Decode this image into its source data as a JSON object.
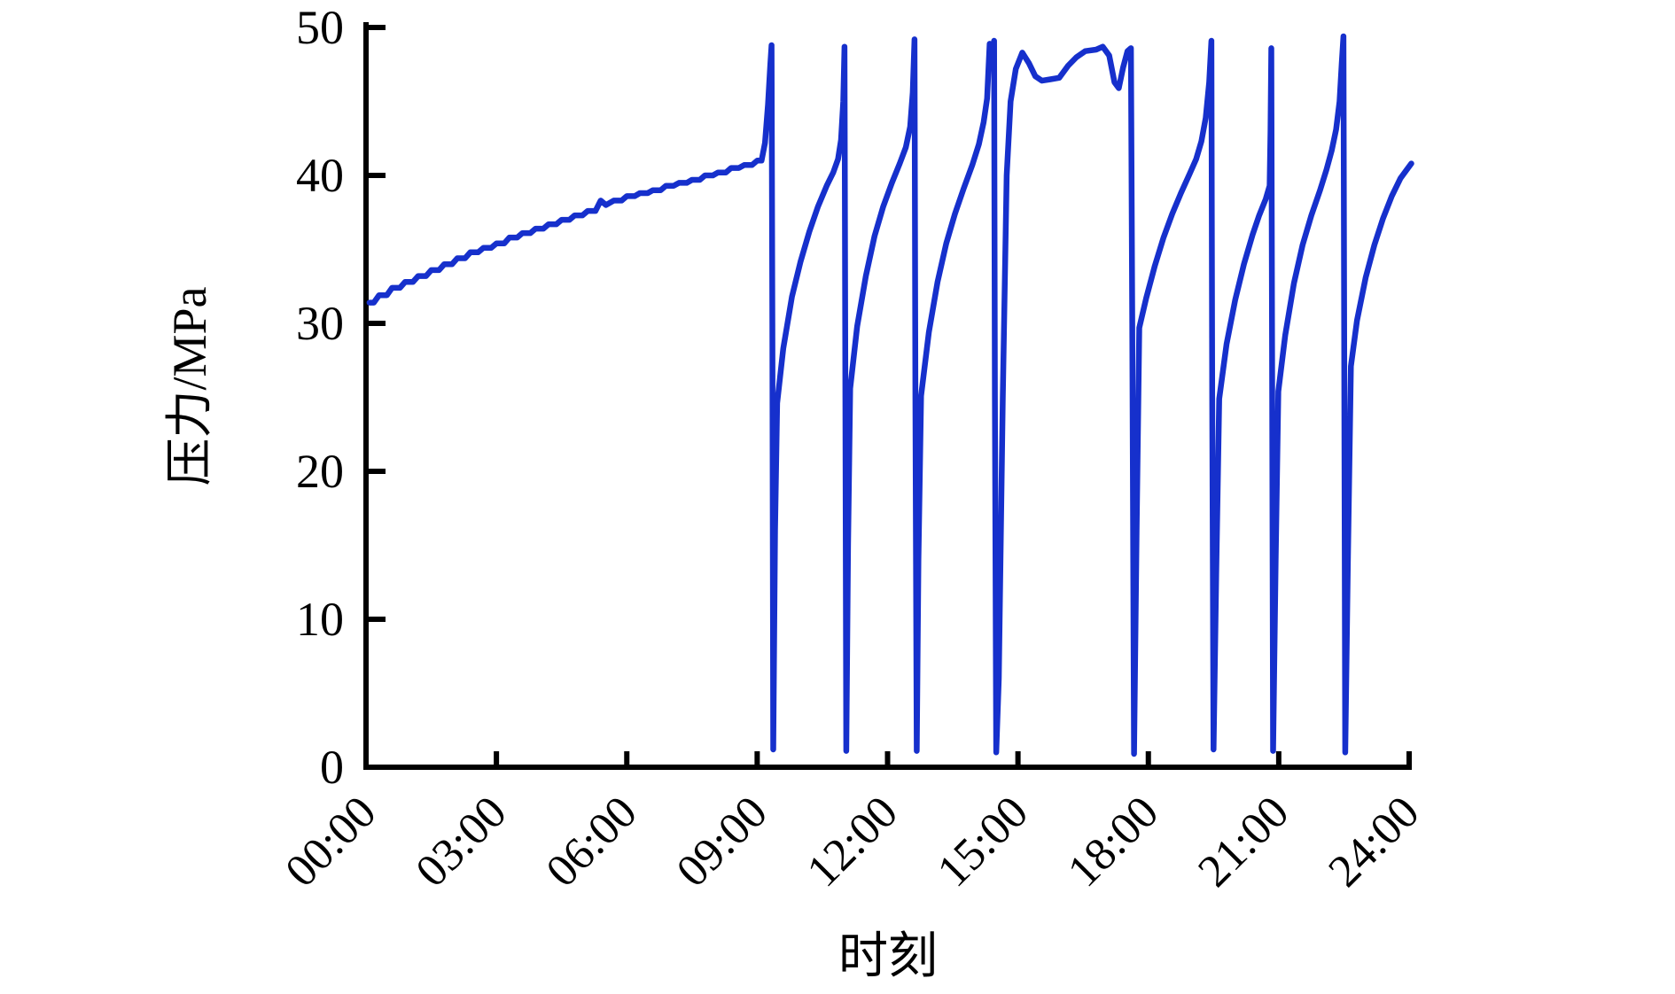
{
  "figure": {
    "background": "#ffffff",
    "axis_color": "#000000"
  },
  "chart_data": {
    "type": "line",
    "title": "",
    "xlabel": "时刻",
    "ylabel": "压力/MPa",
    "x_unit": "clock time (hours 0-24)",
    "y_unit": "MPa",
    "xlim": [
      0,
      24
    ],
    "ylim": [
      0,
      50
    ],
    "grid": false,
    "legend": null,
    "x_tick_hours": [
      0,
      3,
      6,
      9,
      12,
      15,
      18,
      21,
      24
    ],
    "x_ticks": [
      "00:00",
      "03:00",
      "06:00",
      "09:00",
      "12:00",
      "15:00",
      "18:00",
      "21:00",
      "24:00"
    ],
    "y_ticks": [
      0,
      10,
      20,
      30,
      40,
      50
    ],
    "line_color": "#1630CC",
    "line_width": 6.5,
    "series": [
      {
        "name": "压力",
        "points": [
          [
            0.08,
            31.4
          ],
          [
            0.18,
            31.4
          ],
          [
            0.3,
            31.9
          ],
          [
            0.48,
            31.9
          ],
          [
            0.6,
            32.4
          ],
          [
            0.78,
            32.4
          ],
          [
            0.9,
            32.8
          ],
          [
            1.08,
            32.8
          ],
          [
            1.2,
            33.2
          ],
          [
            1.38,
            33.2
          ],
          [
            1.5,
            33.6
          ],
          [
            1.68,
            33.6
          ],
          [
            1.8,
            34.0
          ],
          [
            1.98,
            34.0
          ],
          [
            2.1,
            34.4
          ],
          [
            2.28,
            34.4
          ],
          [
            2.4,
            34.8
          ],
          [
            2.58,
            34.8
          ],
          [
            2.7,
            35.1
          ],
          [
            2.88,
            35.1
          ],
          [
            3.0,
            35.4
          ],
          [
            3.18,
            35.4
          ],
          [
            3.3,
            35.8
          ],
          [
            3.48,
            35.8
          ],
          [
            3.6,
            36.1
          ],
          [
            3.78,
            36.1
          ],
          [
            3.9,
            36.4
          ],
          [
            4.08,
            36.4
          ],
          [
            4.2,
            36.7
          ],
          [
            4.38,
            36.7
          ],
          [
            4.5,
            37.0
          ],
          [
            4.68,
            37.0
          ],
          [
            4.8,
            37.3
          ],
          [
            4.98,
            37.3
          ],
          [
            5.1,
            37.6
          ],
          [
            5.28,
            37.6
          ],
          [
            5.4,
            38.3
          ],
          [
            5.52,
            38.0
          ],
          [
            5.7,
            38.3
          ],
          [
            5.88,
            38.3
          ],
          [
            6.0,
            38.6
          ],
          [
            6.18,
            38.6
          ],
          [
            6.3,
            38.8
          ],
          [
            6.48,
            38.8
          ],
          [
            6.6,
            39.0
          ],
          [
            6.78,
            39.0
          ],
          [
            6.9,
            39.3
          ],
          [
            7.08,
            39.3
          ],
          [
            7.2,
            39.5
          ],
          [
            7.38,
            39.5
          ],
          [
            7.5,
            39.7
          ],
          [
            7.68,
            39.7
          ],
          [
            7.8,
            40.0
          ],
          [
            7.98,
            40.0
          ],
          [
            8.1,
            40.2
          ],
          [
            8.28,
            40.2
          ],
          [
            8.4,
            40.5
          ],
          [
            8.58,
            40.5
          ],
          [
            8.7,
            40.7
          ],
          [
            8.88,
            40.7
          ],
          [
            9.0,
            41.0
          ],
          [
            9.1,
            41.0
          ],
          [
            9.18,
            42.2
          ],
          [
            9.25,
            44.8
          ],
          [
            9.3,
            47.4
          ],
          [
            9.33,
            48.8
          ],
          [
            9.35,
            30.0
          ],
          [
            9.37,
            1.2
          ],
          [
            9.41,
            16.0
          ],
          [
            9.46,
            24.6
          ],
          [
            9.6,
            28.3
          ],
          [
            9.8,
            31.8
          ],
          [
            10.0,
            34.2
          ],
          [
            10.2,
            36.2
          ],
          [
            10.4,
            37.9
          ],
          [
            10.6,
            39.3
          ],
          [
            10.75,
            40.2
          ],
          [
            10.86,
            41.1
          ],
          [
            10.93,
            42.4
          ],
          [
            10.98,
            45.0
          ],
          [
            11.01,
            48.7
          ],
          [
            11.03,
            25.0
          ],
          [
            11.05,
            1.1
          ],
          [
            11.09,
            15.0
          ],
          [
            11.14,
            25.6
          ],
          [
            11.3,
            29.8
          ],
          [
            11.5,
            33.2
          ],
          [
            11.7,
            35.9
          ],
          [
            11.9,
            37.9
          ],
          [
            12.1,
            39.5
          ],
          [
            12.28,
            40.8
          ],
          [
            12.42,
            41.9
          ],
          [
            12.52,
            43.3
          ],
          [
            12.58,
            45.6
          ],
          [
            12.62,
            49.2
          ],
          [
            12.64,
            25.0
          ],
          [
            12.67,
            1.1
          ],
          [
            12.71,
            14.0
          ],
          [
            12.77,
            25.1
          ],
          [
            12.95,
            29.4
          ],
          [
            13.15,
            32.8
          ],
          [
            13.35,
            35.4
          ],
          [
            13.55,
            37.4
          ],
          [
            13.75,
            39.1
          ],
          [
            13.95,
            40.7
          ],
          [
            14.1,
            42.1
          ],
          [
            14.21,
            43.6
          ],
          [
            14.29,
            45.2
          ],
          [
            14.35,
            48.9
          ],
          [
            14.4,
            47.6
          ],
          [
            14.45,
            49.1
          ],
          [
            14.47,
            25.0
          ],
          [
            14.5,
            1.0
          ],
          [
            14.56,
            6.0
          ],
          [
            14.65,
            25.0
          ],
          [
            14.74,
            40.0
          ],
          [
            14.83,
            45.0
          ],
          [
            14.95,
            47.2
          ],
          [
            15.1,
            48.3
          ],
          [
            15.25,
            47.6
          ],
          [
            15.4,
            46.7
          ],
          [
            15.55,
            46.4
          ],
          [
            15.75,
            46.5
          ],
          [
            15.95,
            46.6
          ],
          [
            16.15,
            47.4
          ],
          [
            16.35,
            48.0
          ],
          [
            16.55,
            48.4
          ],
          [
            16.8,
            48.5
          ],
          [
            16.95,
            48.7
          ],
          [
            17.1,
            48.1
          ],
          [
            17.22,
            46.3
          ],
          [
            17.32,
            45.9
          ],
          [
            17.42,
            47.3
          ],
          [
            17.52,
            48.4
          ],
          [
            17.6,
            48.6
          ],
          [
            17.63,
            30.0
          ],
          [
            17.67,
            0.9
          ],
          [
            17.73,
            16.0
          ],
          [
            17.79,
            29.7
          ],
          [
            17.95,
            31.7
          ],
          [
            18.15,
            33.9
          ],
          [
            18.35,
            35.8
          ],
          [
            18.55,
            37.4
          ],
          [
            18.75,
            38.8
          ],
          [
            18.95,
            40.1
          ],
          [
            19.1,
            41.1
          ],
          [
            19.22,
            42.3
          ],
          [
            19.32,
            43.9
          ],
          [
            19.4,
            46.3
          ],
          [
            19.45,
            49.1
          ],
          [
            19.47,
            25.0
          ],
          [
            19.5,
            1.2
          ],
          [
            19.56,
            13.0
          ],
          [
            19.63,
            24.9
          ],
          [
            19.8,
            28.6
          ],
          [
            20.0,
            31.6
          ],
          [
            20.2,
            34.0
          ],
          [
            20.4,
            36.0
          ],
          [
            20.55,
            37.3
          ],
          [
            20.7,
            38.4
          ],
          [
            20.79,
            39.3
          ],
          [
            20.81,
            43.0
          ],
          [
            20.83,
            48.6
          ],
          [
            20.85,
            25.0
          ],
          [
            20.87,
            1.1
          ],
          [
            20.93,
            14.0
          ],
          [
            20.99,
            25.4
          ],
          [
            21.15,
            29.2
          ],
          [
            21.35,
            32.7
          ],
          [
            21.55,
            35.3
          ],
          [
            21.75,
            37.3
          ],
          [
            21.95,
            39.0
          ],
          [
            22.1,
            40.4
          ],
          [
            22.22,
            41.7
          ],
          [
            22.32,
            43.1
          ],
          [
            22.4,
            45.0
          ],
          [
            22.45,
            47.6
          ],
          [
            22.49,
            49.4
          ],
          [
            22.51,
            25.0
          ],
          [
            22.53,
            1.0
          ],
          [
            22.59,
            14.0
          ],
          [
            22.66,
            27.1
          ],
          [
            22.8,
            30.2
          ],
          [
            23.0,
            33.1
          ],
          [
            23.2,
            35.3
          ],
          [
            23.4,
            37.1
          ],
          [
            23.6,
            38.6
          ],
          [
            23.8,
            39.8
          ],
          [
            23.95,
            40.4
          ],
          [
            24.05,
            40.8
          ]
        ]
      }
    ]
  }
}
